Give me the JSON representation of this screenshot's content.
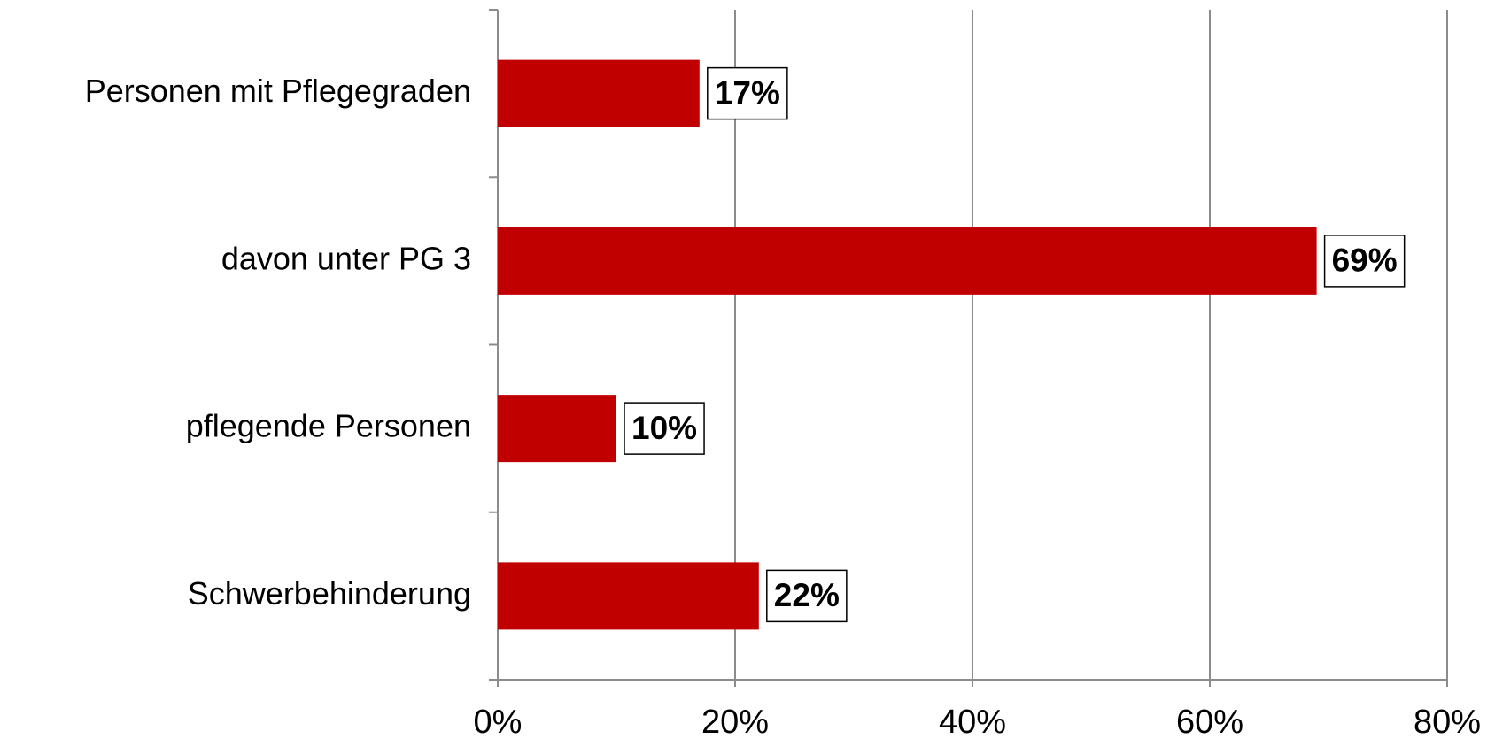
{
  "chart_data": {
    "type": "bar",
    "orientation": "horizontal",
    "categories": [
      "Personen mit Pflegegraden",
      "davon unter PG 3",
      "pflegende Personen",
      "Schwerbehinderung"
    ],
    "values": [
      17,
      69,
      10,
      22
    ],
    "value_labels": [
      "17%",
      "69%",
      "10%",
      "22%"
    ],
    "color": "#c00000",
    "xlim": [
      0,
      80
    ],
    "xticks": [
      {
        "value": 0,
        "label": "0%"
      },
      {
        "value": 20,
        "label": "20%"
      },
      {
        "value": 40,
        "label": "40%"
      },
      {
        "value": 60,
        "label": "60%"
      },
      {
        "value": 80,
        "label": "80%"
      }
    ],
    "grid": true
  }
}
